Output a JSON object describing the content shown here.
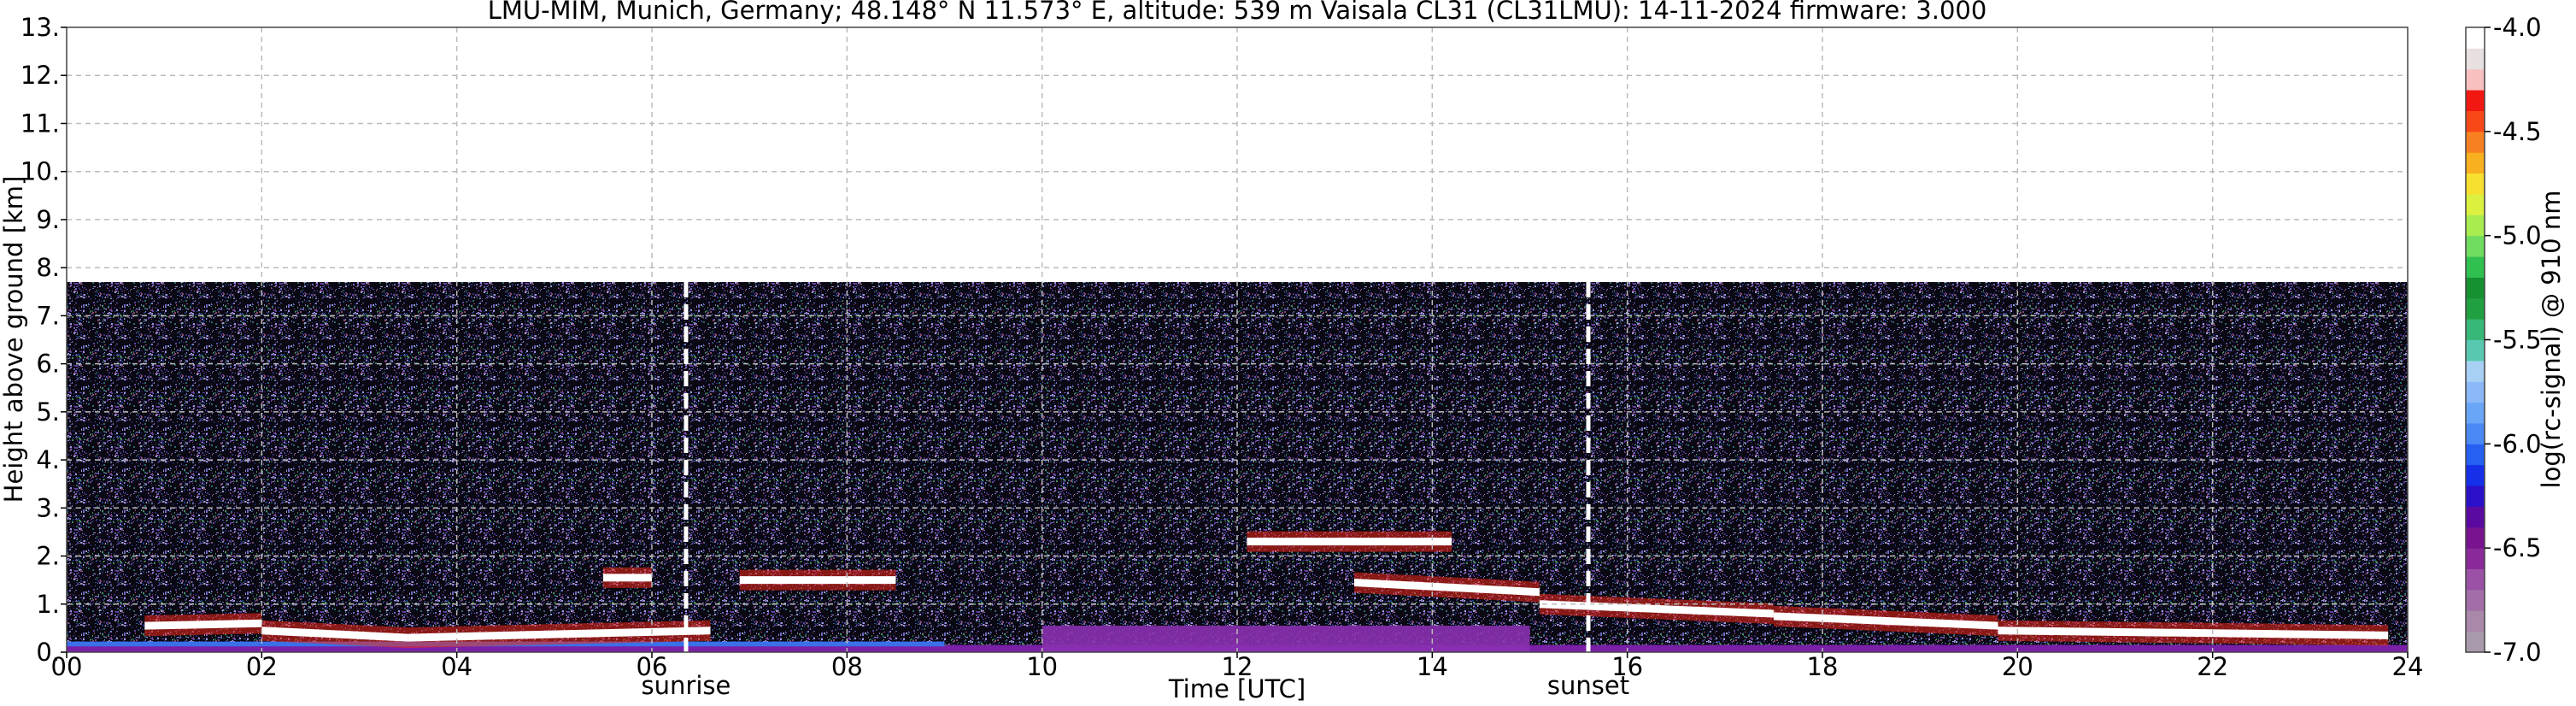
{
  "chart_data": {
    "type": "heatmap",
    "title": "LMU-MIM, Munich, Germany; 48.148° N 11.573° E, altitude: 539 m    Vaisala CL31 (CL31LMU): 14-11-2024    firmware: 3.000",
    "xlabel": "Time [UTC]",
    "ylabel": "Height above ground [km]",
    "xlim": [
      0,
      24
    ],
    "ylim": [
      0,
      13
    ],
    "x_ticks": [
      "00",
      "02",
      "04",
      "06",
      "08",
      "10",
      "12",
      "14",
      "16",
      "18",
      "20",
      "22",
      "24"
    ],
    "x_tick_values": [
      0,
      2,
      4,
      6,
      8,
      10,
      12,
      14,
      16,
      18,
      20,
      22,
      24
    ],
    "y_ticks": [
      "0.",
      "1.",
      "2.",
      "3.",
      "4.",
      "5.",
      "6.",
      "7.",
      "8.",
      "9.",
      "10.",
      "11.",
      "12.",
      "13."
    ],
    "y_tick_values": [
      0,
      1,
      2,
      3,
      4,
      5,
      6,
      7,
      8,
      9,
      10,
      11,
      12,
      13
    ],
    "grid": true,
    "data_top_km": 7.7,
    "markers": [
      {
        "label": "sunrise",
        "time": 6.35
      },
      {
        "label": "sunset",
        "time": 15.6
      }
    ],
    "layers": [
      {
        "kind": "surface",
        "t0": 0,
        "t1": 24
      },
      {
        "kind": "layer",
        "t0": 0.8,
        "t1": 2.0,
        "h0": 0.55,
        "h1": 0.6
      },
      {
        "kind": "layer",
        "t0": 2.0,
        "t1": 3.5,
        "h0": 0.45,
        "h1": 0.3
      },
      {
        "kind": "layer",
        "t0": 3.5,
        "t1": 6.6,
        "h0": 0.3,
        "h1": 0.45
      },
      {
        "kind": "layer",
        "t0": 6.9,
        "t1": 8.5,
        "h0": 1.5,
        "h1": 1.5
      },
      {
        "kind": "layer",
        "t0": 5.5,
        "t1": 6.0,
        "h0": 1.55,
        "h1": 1.55
      },
      {
        "kind": "layer",
        "t0": 12.1,
        "t1": 14.2,
        "h0": 2.3,
        "h1": 2.3
      },
      {
        "kind": "layer",
        "t0": 13.2,
        "t1": 15.1,
        "h0": 1.45,
        "h1": 1.25
      },
      {
        "kind": "layer",
        "t0": 15.1,
        "t1": 17.5,
        "h0": 1.0,
        "h1": 0.8
      },
      {
        "kind": "layer",
        "t0": 17.5,
        "t1": 19.8,
        "h0": 0.75,
        "h1": 0.55
      },
      {
        "kind": "layer",
        "t0": 19.8,
        "t1": 23.8,
        "h0": 0.45,
        "h1": 0.35
      }
    ],
    "colorbar": {
      "label": "log(rc-signal) @ 910 nm",
      "range": [
        -7.0,
        -4.0
      ],
      "tick_values": [
        -7.0,
        -6.5,
        -6.0,
        -5.5,
        -5.0,
        -4.5,
        -4.0
      ],
      "tick_labels": [
        "-7.0",
        "-6.5",
        "-6.0",
        "-5.5",
        "-5.0",
        "-4.5",
        "-4.0"
      ],
      "colors": [
        "#a899ac",
        "#a988aa",
        "#a36ea8",
        "#9b52a6",
        "#8a2a9a",
        "#7a1390",
        "#5a0aa0",
        "#2a10c8",
        "#1530e8",
        "#2560f0",
        "#4a88f4",
        "#6aa6f8",
        "#8ab8f8",
        "#a8d0f4",
        "#58c8b0",
        "#38b878",
        "#20a040",
        "#169030",
        "#30c050",
        "#70dc60",
        "#a8ec50",
        "#dcf040",
        "#f8e030",
        "#f8b020",
        "#f88020",
        "#f84818",
        "#f01810",
        "#f8c0c0",
        "#e8e0e0",
        "#ffffff"
      ]
    }
  }
}
